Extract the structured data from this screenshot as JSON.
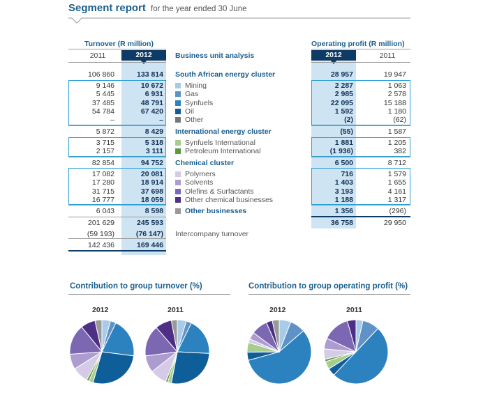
{
  "header": {
    "title": "Segment report",
    "subtitle": "for the year ended 30 June"
  },
  "turnover": {
    "heading": "Turnover (R million)",
    "year_prev": "2011",
    "year_cur": "2012"
  },
  "profit": {
    "heading": "Operating profit (R million)",
    "year_cur": "2012",
    "year_prev": "2011"
  },
  "bua_heading": "Business unit analysis",
  "rows": [
    {
      "t11": "106 860",
      "t12": "133 814",
      "label": "South African energy cluster",
      "p12": "28 957",
      "p11": "19 947",
      "bold": true,
      "color": ""
    },
    {
      "t11": "9 146",
      "t12": "10 672",
      "label": "Mining",
      "p12": "2 287",
      "p11": "1 063",
      "bold": false,
      "color": "#a8cbe8"
    },
    {
      "t11": "5 445",
      "t12": "6 931",
      "label": "Gas",
      "p12": "2 985",
      "p11": "2 578",
      "bold": false,
      "color": "#5f93c7"
    },
    {
      "t11": "37 485",
      "t12": "48 791",
      "label": "Synfuels",
      "p12": "22 095",
      "p11": "15 188",
      "bold": false,
      "color": "#2b82bf"
    },
    {
      "t11": "54 784",
      "t12": "67 420",
      "label": "Oil",
      "p12": "1 592",
      "p11": "1 180",
      "bold": false,
      "color": "#0e5f99"
    },
    {
      "t11": "–",
      "t12": "–",
      "label": "Other",
      "p12": "(2)",
      "p11": "(62)",
      "bold": false,
      "color": "#777777"
    },
    {
      "t11": "5 872",
      "t12": "8 429",
      "label": "International energy cluster",
      "p12": "(55)",
      "p11": "1 587",
      "bold": true,
      "color": ""
    },
    {
      "t11": "3 715",
      "t12": "5 318",
      "label": "Synfuels International",
      "p12": "1 881",
      "p11": "1 205",
      "bold": false,
      "color": "#a6cc8e"
    },
    {
      "t11": "2 157",
      "t12": "3 111",
      "label": "Petroleum International",
      "p12": "(1 936)",
      "p11": "382",
      "bold": false,
      "color": "#5e9a3c"
    },
    {
      "t11": "82 854",
      "t12": "94 752",
      "label": "Chemical cluster",
      "p12": "6 500",
      "p11": "8 712",
      "bold": true,
      "color": ""
    },
    {
      "t11": "17 082",
      "t12": "20 081",
      "label": "Polymers",
      "p12": "716",
      "p11": "1 579",
      "bold": false,
      "color": "#d5cbe6"
    },
    {
      "t11": "17 280",
      "t12": "18 914",
      "label": "Solvents",
      "p12": "1 403",
      "p11": "1 655",
      "bold": false,
      "color": "#ad9ccf"
    },
    {
      "t11": "31 715",
      "t12": "37 698",
      "label": "Olefins & Surfactants",
      "p12": "3 193",
      "p11": "4 161",
      "bold": false,
      "color": "#7b67b2"
    },
    {
      "t11": "16 777",
      "t12": "18 059",
      "label": "Other chemical businesses",
      "p12": "1 188",
      "p11": "1 317",
      "bold": false,
      "color": "#4d2f86"
    },
    {
      "t11": "6 043",
      "t12": "8 598",
      "label": "Other businesses",
      "p12": "1 356",
      "p11": "(296)",
      "bold": true,
      "color": "#999999"
    }
  ],
  "totals": [
    {
      "t11": "201 629",
      "t12": "245 593",
      "label": "",
      "p12": "36 758",
      "p11": "29 950"
    },
    {
      "t11": "(59 193)",
      "t12": "(76 147)",
      "label": "Intercompany turnover",
      "p12": "",
      "p11": ""
    },
    {
      "t11": "142 436",
      "t12": "169 446",
      "label": "",
      "p12": "",
      "p11": ""
    }
  ],
  "pies": {
    "turnover_title": "Contribution to group turnover (%)",
    "profit_title": "Contribution to group operating profit (%)",
    "colors": [
      "#a8cbe8",
      "#5f93c7",
      "#2b82bf",
      "#0e5f99",
      "#a6cc8e",
      "#5e9a3c",
      "#d5cbe6",
      "#ad9ccf",
      "#7b67b2",
      "#4d2f86",
      "#999999"
    ],
    "charts": [
      {
        "year": "2012",
        "values": [
          10672,
          6931,
          48791,
          67420,
          5318,
          3111,
          20081,
          18914,
          37698,
          18059,
          8598
        ]
      },
      {
        "year": "2011",
        "values": [
          9146,
          5445,
          37485,
          54784,
          3715,
          2157,
          17082,
          17280,
          31715,
          16777,
          6043
        ]
      },
      {
        "year": "2012",
        "values": [
          2287,
          2985,
          22095,
          1592,
          1881,
          0,
          716,
          1403,
          3193,
          1188,
          1356
        ]
      },
      {
        "year": "2011",
        "values": [
          1063,
          2578,
          15188,
          1180,
          1205,
          382,
          1579,
          1655,
          4161,
          1317,
          0
        ]
      }
    ]
  }
}
